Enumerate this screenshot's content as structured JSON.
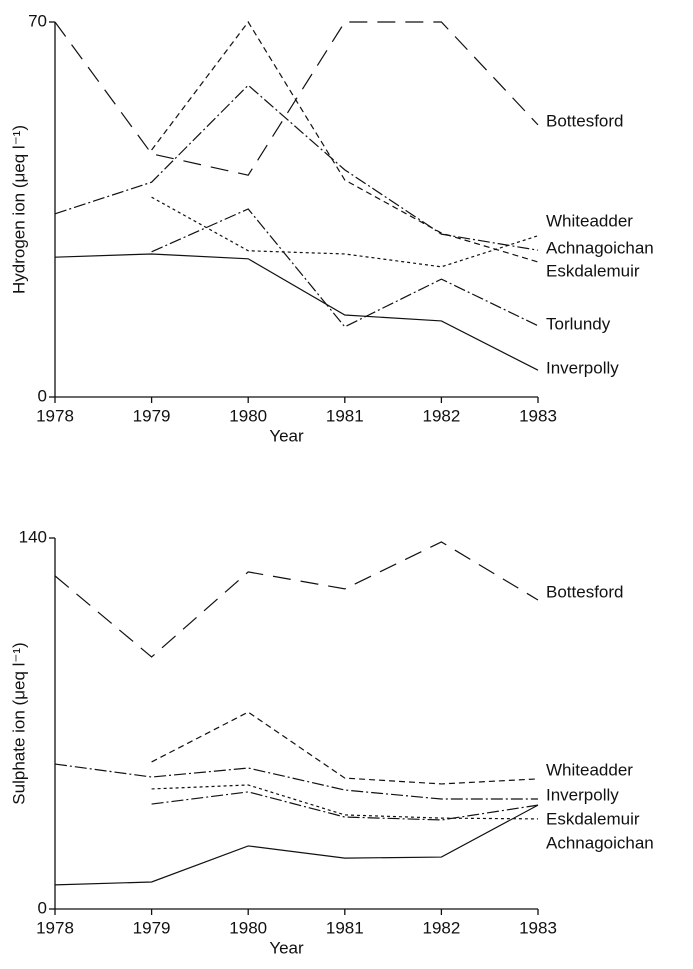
{
  "chart_data": [
    {
      "type": "line",
      "ylabel": "Hydrogen ion (μeq l⁻¹)",
      "xlabel": "Year",
      "x": [
        1978,
        1979,
        1980,
        1981,
        1982,
        1983
      ],
      "xlim": [
        1978,
        1983
      ],
      "xticks": [
        1978,
        1979,
        1980,
        1981,
        1982,
        1983
      ],
      "ylim": [
        0,
        70
      ],
      "yticks": [
        0,
        70
      ],
      "color": "#111111",
      "series": [
        {
          "name": "Bottesford",
          "style": "long-dash",
          "values": [
            70,
            45.4,
            41.4,
            70,
            70,
            50.8
          ]
        },
        {
          "name": "Whiteadder",
          "style": "dot",
          "values": [
            null,
            37.3,
            27.3,
            26.7,
            24.3,
            30.1
          ]
        },
        {
          "name": "Achnagoichan",
          "style": "dash-dot",
          "values": [
            34.2,
            40.1,
            58.2,
            42.4,
            30.4,
            27.4
          ]
        },
        {
          "name": "Eskdalemuir",
          "style": "dash",
          "values": [
            null,
            46.1,
            70,
            40.5,
            30.6,
            25.2
          ]
        },
        {
          "name": "Torlundy",
          "style": "dash-dot",
          "values": [
            null,
            27.1,
            35.1,
            13.1,
            22,
            13.3
          ]
        },
        {
          "name": "Inverpolly",
          "style": "solid",
          "values": [
            26.1,
            26.7,
            25.8,
            15.3,
            14.2,
            5.0
          ]
        }
      ]
    },
    {
      "type": "line",
      "ylabel": "Sulphate ion (μeq l⁻¹)",
      "xlabel": "Year",
      "x": [
        1978,
        1979,
        1980,
        1981,
        1982,
        1983
      ],
      "xlim": [
        1978,
        1983
      ],
      "xticks": [
        1978,
        1979,
        1980,
        1981,
        1982,
        1983
      ],
      "ylim": [
        0,
        140
      ],
      "yticks": [
        0,
        140
      ],
      "color": "#111111",
      "series": [
        {
          "name": "Bottesford",
          "style": "long-dash",
          "values": [
            125.7,
            95.1,
            127.2,
            120.8,
            138.5,
            116.6
          ]
        },
        {
          "name": "Whiteadder",
          "style": "dash",
          "values": [
            null,
            55.5,
            74.3,
            49.4,
            47.2,
            49.1
          ]
        },
        {
          "name": "Inverpolly",
          "style": "dash-dot",
          "values": [
            54.7,
            49.8,
            53.2,
            44.9,
            41.5,
            41.5
          ]
        },
        {
          "name": "Eskdalemuir",
          "style": "dot",
          "values": [
            null,
            45.3,
            46.8,
            35.5,
            34.3,
            34.0
          ]
        },
        {
          "name": "Achnagoichan",
          "style": "solid",
          "values": [
            9.1,
            10.2,
            23.8,
            19.2,
            19.6,
            39.2
          ]
        },
        {
          "style": "dash-dot",
          "values": [
            null,
            39.6,
            44.2,
            34.7,
            33.6,
            39.2
          ]
        }
      ]
    }
  ]
}
